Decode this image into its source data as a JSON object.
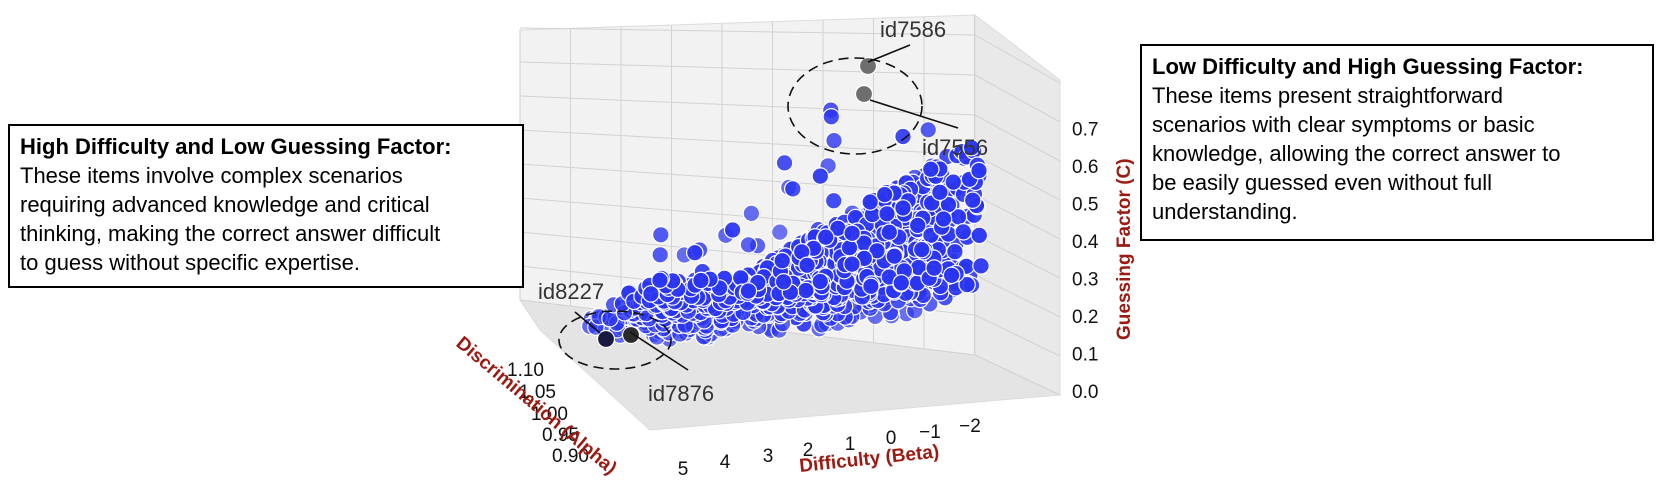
{
  "chart_data": {
    "type": "scatter",
    "dimensions": 3,
    "axes": {
      "x": {
        "label": "Difficulty (Beta)",
        "ticks": [
          "5",
          "4",
          "3",
          "2",
          "1",
          "0",
          "−1",
          "−2"
        ],
        "range": [
          5.5,
          -2.5
        ]
      },
      "y": {
        "label": "Discrimination (Alpha)",
        "ticks": [
          "1.10",
          "1.05",
          "1.00",
          "0.95",
          "0.90"
        ],
        "range": [
          0.88,
          1.12
        ]
      },
      "z": {
        "label": "Guessing Factor (C)",
        "ticks": [
          "0.0",
          "0.1",
          "0.2",
          "0.3",
          "0.4",
          "0.5",
          "0.6",
          "0.7"
        ],
        "range": [
          0.0,
          0.75
        ]
      }
    },
    "grid": true,
    "point_color": "#2a35f0",
    "highlight_color": "#6e6e6e",
    "highlighted_points": [
      {
        "id": "id7586",
        "difficulty": 0.8,
        "discrimination": 1.06,
        "guessing": 0.74
      },
      {
        "id": "id7556",
        "difficulty": 0.9,
        "discrimination": 1.05,
        "guessing": 0.68
      },
      {
        "id": "id8227",
        "difficulty": 4.2,
        "discrimination": 1.08,
        "guessing": 0.05
      },
      {
        "id": "id7876",
        "difficulty": 3.9,
        "discrimination": 1.06,
        "guessing": 0.06
      }
    ],
    "callouts": [
      "id7586",
      "id7556",
      "id8227",
      "id7876"
    ]
  },
  "annotations": {
    "left": {
      "heading": "High Difficulty and Low Guessing Factor:",
      "lines": [
        "These items involve complex scenarios",
        "requiring advanced knowledge and critical",
        "thinking, making the correct answer difficult",
        "to guess without specific expertise."
      ]
    },
    "right": {
      "heading": "Low Difficulty and High Guessing Factor:",
      "lines": [
        "These items present straightforward",
        "scenarios with clear symptoms or basic",
        "knowledge, allowing the correct answer to",
        "be easily guessed even without full",
        "understanding."
      ]
    }
  }
}
